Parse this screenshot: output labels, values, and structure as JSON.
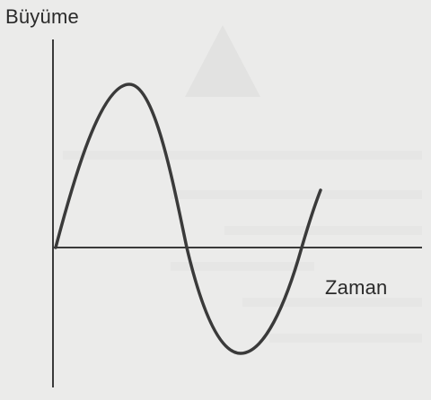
{
  "diagram": {
    "y_axis_label": "Büyüme",
    "x_axis_label": "Zaman",
    "curve": "sine-wave",
    "colors": {
      "background": "#ebebea",
      "line": "#3a3a3a",
      "text": "#2a2a2a"
    }
  }
}
